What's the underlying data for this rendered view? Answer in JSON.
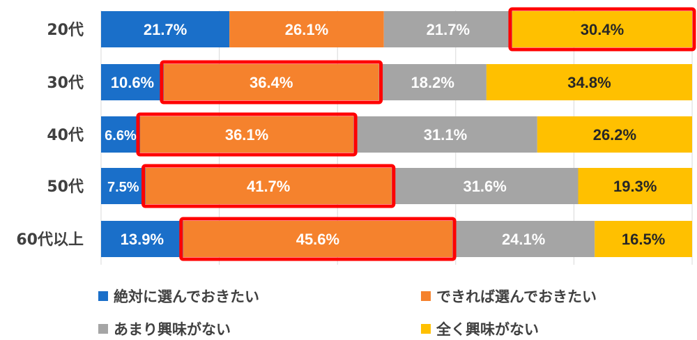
{
  "chart_data": {
    "type": "bar",
    "orientation": "horizontal",
    "stacked": "percent",
    "categories": [
      "20代",
      "30代",
      "40代",
      "50代",
      "60代以上"
    ],
    "series": [
      {
        "name": "絶対に選んでおきたい",
        "color": "#1a6fc9",
        "label_color": "#ffffff",
        "values": [
          21.7,
          10.6,
          6.6,
          7.5,
          13.9
        ]
      },
      {
        "name": "できれば選んでおきたい",
        "color": "#f5822d",
        "label_color": "#ffffff",
        "values": [
          26.1,
          36.4,
          36.1,
          41.7,
          45.6
        ]
      },
      {
        "name": "あまり興味がない",
        "color": "#a5a5a5",
        "label_color": "#ffffff",
        "values": [
          21.7,
          18.2,
          31.1,
          31.6,
          24.1
        ]
      },
      {
        "name": "全く興味がない",
        "color": "#ffc000",
        "label_color": "#262626",
        "values": [
          30.4,
          34.8,
          26.2,
          19.3,
          16.5
        ]
      }
    ],
    "value_suffix": "%",
    "xlim": [
      0,
      100
    ],
    "grid": true,
    "legend_position": "bottom",
    "highlight": {
      "color": "#ff0000",
      "segments": [
        [
          0,
          3
        ],
        [
          1,
          1
        ],
        [
          2,
          1
        ],
        [
          3,
          1
        ],
        [
          4,
          1
        ]
      ]
    }
  }
}
